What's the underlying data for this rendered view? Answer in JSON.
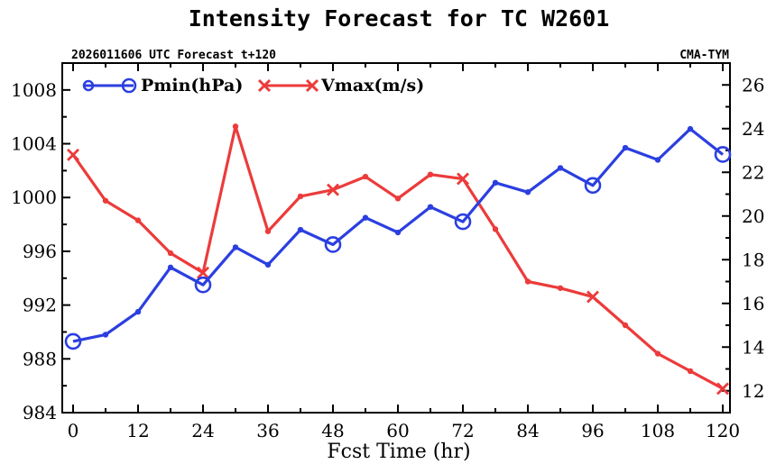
{
  "chart_data": {
    "type": "line",
    "title": "Intensity Forecast for TC W2601",
    "subtitle_left": "2026011606 UTC Forecast t+120",
    "subtitle_right": "CMA-TYM",
    "xlabel": "Fcst Time (hr)",
    "xlim": [
      0,
      120
    ],
    "xticks": [
      "0",
      "12",
      "24",
      "36",
      "48",
      "60",
      "72",
      "84",
      "96",
      "108",
      "120"
    ],
    "ylim_left": [
      984,
      1010
    ],
    "yticks_left": [
      "984",
      "988",
      "992",
      "996",
      "1000",
      "1004",
      "1008"
    ],
    "ylim_right": [
      11.0,
      27.0
    ],
    "yticks_right": [
      "12",
      "14",
      "16",
      "18",
      "20",
      "22",
      "24",
      "26"
    ],
    "x": [
      0,
      6,
      12,
      18,
      24,
      30,
      36,
      42,
      48,
      54,
      60,
      66,
      72,
      78,
      84,
      90,
      96,
      102,
      108,
      114,
      120
    ],
    "series": [
      {
        "name": "Pmin(hPa)",
        "axis": "left",
        "color": "#2b3fe0",
        "marker": "circle",
        "values": [
          989.3,
          989.8,
          991.5,
          994.8,
          993.5,
          996.3,
          995.0,
          997.6,
          996.5,
          998.5,
          997.4,
          999.3,
          998.2,
          1001.1,
          1000.4,
          1002.2,
          1000.9,
          1003.7,
          1002.8,
          1005.1,
          1003.2
        ]
      },
      {
        "name": "Vmax(m/s)",
        "axis": "right",
        "color": "#ec3b3b",
        "marker": "x",
        "values": [
          22.8,
          20.7,
          19.8,
          18.3,
          17.4,
          24.1,
          19.3,
          20.9,
          21.2,
          21.8,
          20.8,
          21.9,
          21.7,
          19.4,
          17.0,
          16.7,
          16.3,
          15.0,
          13.7,
          12.9,
          12.1
        ]
      }
    ],
    "legend_position": "top-left"
  }
}
